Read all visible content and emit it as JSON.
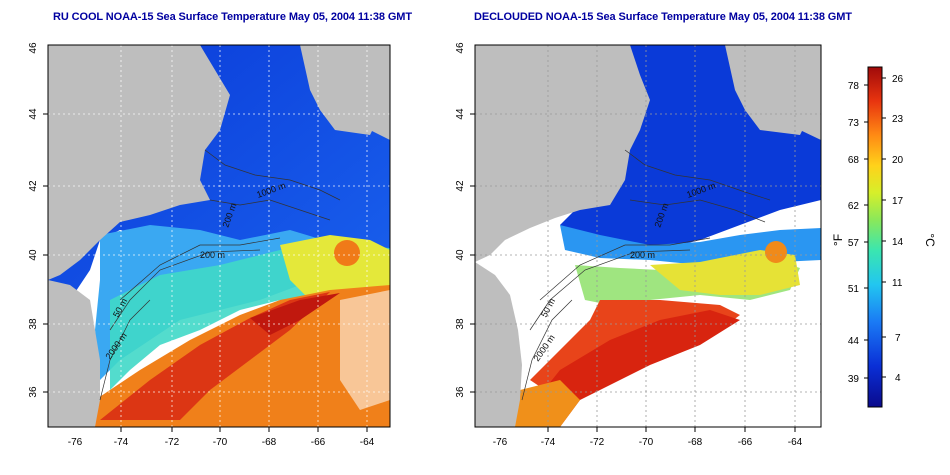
{
  "panels": [
    {
      "id": "left",
      "title": "RU COOL NOAA-15 Sea Surface Temperature May 05, 2004 11:38 GMT",
      "contour_labels": [
        "50 m",
        "200 m",
        "2000 m",
        "200 m",
        "1000 m"
      ]
    },
    {
      "id": "right",
      "title": "DECLOUDED NOAA-15 Sea Surface Temperature May 05, 2004 11:38 GMT",
      "contour_labels": [
        "50 m",
        "200 m",
        "2000 m",
        "200 m",
        "1000 m"
      ]
    }
  ],
  "axes": {
    "lon_ticks": [
      "-76",
      "-74",
      "-72",
      "-70",
      "-68",
      "-66",
      "-64"
    ],
    "lat_ticks": [
      "36",
      "38",
      "40",
      "42",
      "44",
      "46"
    ]
  },
  "colorbar": {
    "f_label": "°F",
    "c_label": "°C",
    "f_ticks": [
      "78",
      "73",
      "68",
      "62",
      "57",
      "51",
      "44",
      "39"
    ],
    "c_ticks": [
      "26",
      "23",
      "20",
      "17",
      "14",
      "11",
      "7",
      "4"
    ]
  },
  "colors": {
    "title": "#0000a0",
    "land": "#bebebe",
    "cold": "#0a2fd6",
    "warm": "#d21a10"
  }
}
